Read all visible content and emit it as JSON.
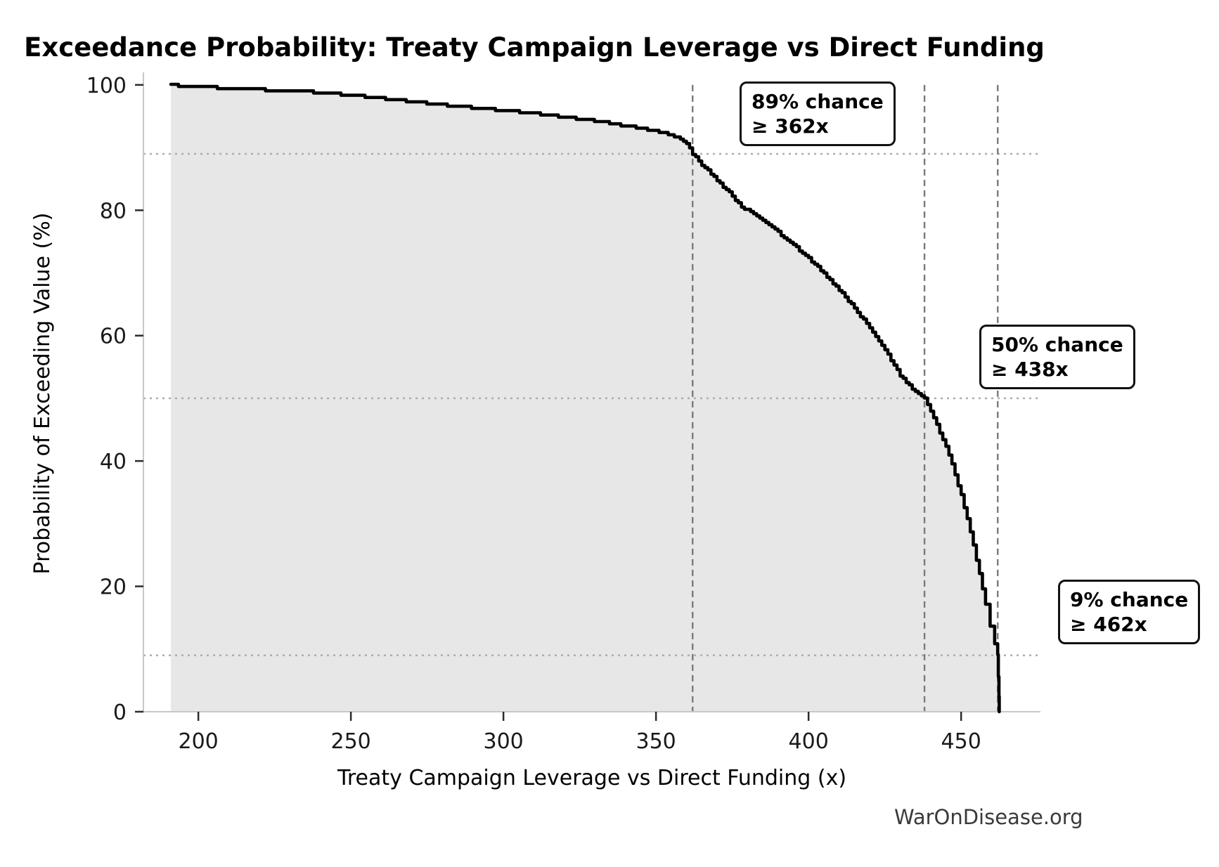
{
  "watermark": "WarOnDisease.org",
  "chart_data": {
    "type": "area",
    "title": "Exceedance Probability: Treaty Campaign Leverage vs Direct Funding",
    "xlabel": "Treaty Campaign Leverage vs Direct Funding (x)",
    "ylabel": "Probability of Exceeding Value (%)",
    "xlim": [
      182,
      476
    ],
    "ylim": [
      0,
      102
    ],
    "x_ticks": [
      200,
      250,
      300,
      350,
      400,
      450
    ],
    "y_ticks": [
      0,
      20,
      40,
      60,
      80,
      100
    ],
    "grid": "off",
    "legend": "none",
    "curve": [
      [
        191,
        100
      ],
      [
        196,
        99.8
      ],
      [
        204,
        99.6
      ],
      [
        213,
        99.4
      ],
      [
        222,
        99.2
      ],
      [
        231,
        99.0
      ],
      [
        240,
        98.8
      ],
      [
        249,
        98.4
      ],
      [
        258,
        98.0
      ],
      [
        267,
        97.5
      ],
      [
        276,
        97.0
      ],
      [
        285,
        96.6
      ],
      [
        294,
        96.2
      ],
      [
        303,
        95.8
      ],
      [
        311,
        95.4
      ],
      [
        318,
        95.0
      ],
      [
        325,
        94.6
      ],
      [
        331,
        94.2
      ],
      [
        336,
        93.8
      ],
      [
        341,
        93.4
      ],
      [
        346,
        93.0
      ],
      [
        351,
        92.5
      ],
      [
        354,
        92.1
      ],
      [
        357,
        91.6
      ],
      [
        359,
        91.0
      ],
      [
        361,
        90.1
      ],
      [
        362,
        89.0
      ],
      [
        364,
        87.8
      ],
      [
        366,
        86.8
      ],
      [
        368,
        85.8
      ],
      [
        370,
        84.8
      ],
      [
        372,
        83.8
      ],
      [
        374,
        82.8
      ],
      [
        376,
        81.7
      ],
      [
        378,
        80.5
      ],
      [
        380,
        80.0
      ],
      [
        382,
        79.5
      ],
      [
        384,
        78.8
      ],
      [
        386,
        78.1
      ],
      [
        388,
        77.3
      ],
      [
        390,
        76.5
      ],
      [
        392,
        75.7
      ],
      [
        394,
        74.9
      ],
      [
        396,
        74.1
      ],
      [
        398,
        73.2
      ],
      [
        400,
        72.3
      ],
      [
        402,
        71.4
      ],
      [
        404,
        70.4
      ],
      [
        406,
        69.4
      ],
      [
        408,
        68.4
      ],
      [
        410,
        67.3
      ],
      [
        412,
        66.2
      ],
      [
        414,
        65.0
      ],
      [
        416,
        63.8
      ],
      [
        418,
        62.5
      ],
      [
        420,
        61.2
      ],
      [
        422,
        59.8
      ],
      [
        424,
        58.4
      ],
      [
        426,
        56.9
      ],
      [
        428,
        55.3
      ],
      [
        430,
        53.7
      ],
      [
        432,
        52.5
      ],
      [
        434,
        51.6
      ],
      [
        436,
        50.8
      ],
      [
        438,
        50.0
      ],
      [
        440,
        47.9
      ],
      [
        442,
        45.7
      ],
      [
        444,
        43.4
      ],
      [
        446,
        41.0
      ],
      [
        448,
        37.9
      ],
      [
        450,
        34.5
      ],
      [
        452,
        30.7
      ],
      [
        454,
        26.5
      ],
      [
        456,
        22.0
      ],
      [
        458,
        17.2
      ],
      [
        459.5,
        13.8
      ],
      [
        461,
        11.0
      ],
      [
        462,
        9.0
      ],
      [
        462.2,
        5.5
      ],
      [
        462.4,
        2.5
      ],
      [
        462.5,
        0
      ]
    ],
    "annotations": [
      {
        "label_line1": "89% chance",
        "label_line2": "≥ 362x",
        "x": 362,
        "p": 89
      },
      {
        "label_line1": "50% chance",
        "label_line2": "≥ 438x",
        "x": 438,
        "p": 50
      },
      {
        "label_line1": "9% chance",
        "label_line2": "≥ 462x",
        "x": 462,
        "p": 9
      }
    ],
    "colors": {
      "line": "#000000",
      "fill": "#e7e7e7",
      "dashed_vline": "#7a7a7a",
      "dotted_hline": "#adadad",
      "spine": "#c8c8c8",
      "tick": "#2b2b2b",
      "tick_label": "#1a1a1a"
    }
  }
}
